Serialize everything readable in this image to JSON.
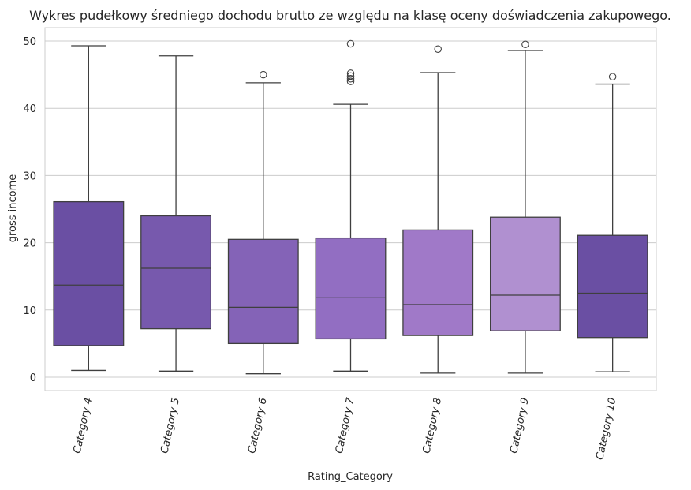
{
  "chart_data": {
    "type": "box",
    "title": "Wykres pudełkowy średniego dochodu brutto ze względu na klasę oceny doświadczenia zakupowego.",
    "xlabel": "Rating_Category",
    "ylabel": "gross income",
    "ylim": [
      -2,
      52
    ],
    "yticks": [
      0,
      10,
      20,
      30,
      40,
      50
    ],
    "grid": true,
    "categories": [
      "Category 4",
      "Category 5",
      "Category 6",
      "Category 7",
      "Category 8",
      "Category 9",
      "Category 10"
    ],
    "boxes": [
      {
        "category": "Category 4",
        "whisker_low": 1.0,
        "q1": 4.7,
        "median": 13.7,
        "q3": 26.1,
        "whisker_high": 49.3,
        "outliers": [],
        "color": "#6a4fa3"
      },
      {
        "category": "Category 5",
        "whisker_low": 0.9,
        "q1": 7.2,
        "median": 16.2,
        "q3": 24.0,
        "whisker_high": 47.8,
        "outliers": [],
        "color": "#7759ad"
      },
      {
        "category": "Category 6",
        "whisker_low": 0.5,
        "q1": 5.0,
        "median": 10.4,
        "q3": 20.5,
        "whisker_high": 43.8,
        "outliers": [
          45.0
        ],
        "color": "#8463b7"
      },
      {
        "category": "Category 7",
        "whisker_low": 0.9,
        "q1": 5.7,
        "median": 11.9,
        "q3": 20.7,
        "whisker_high": 40.6,
        "outliers": [
          44.0,
          44.4,
          44.8,
          45.2,
          49.6
        ],
        "color": "#926ec2"
      },
      {
        "category": "Category 8",
        "whisker_low": 0.6,
        "q1": 6.2,
        "median": 10.8,
        "q3": 21.9,
        "whisker_high": 45.3,
        "outliers": [
          48.8
        ],
        "color": "#a079c8"
      },
      {
        "category": "Category 9",
        "whisker_low": 0.6,
        "q1": 6.9,
        "median": 12.2,
        "q3": 23.8,
        "whisker_high": 48.6,
        "outliers": [
          49.5
        ],
        "color": "#b090d0"
      },
      {
        "category": "Category 10",
        "whisker_low": 0.8,
        "q1": 5.9,
        "median": 12.5,
        "q3": 21.1,
        "whisker_high": 43.6,
        "outliers": [
          44.7
        ],
        "color": "#6a4fa3"
      }
    ]
  },
  "colors": {
    "frame": "#cccccc",
    "grid": "#cccccc",
    "line": "#3f3f3f"
  }
}
